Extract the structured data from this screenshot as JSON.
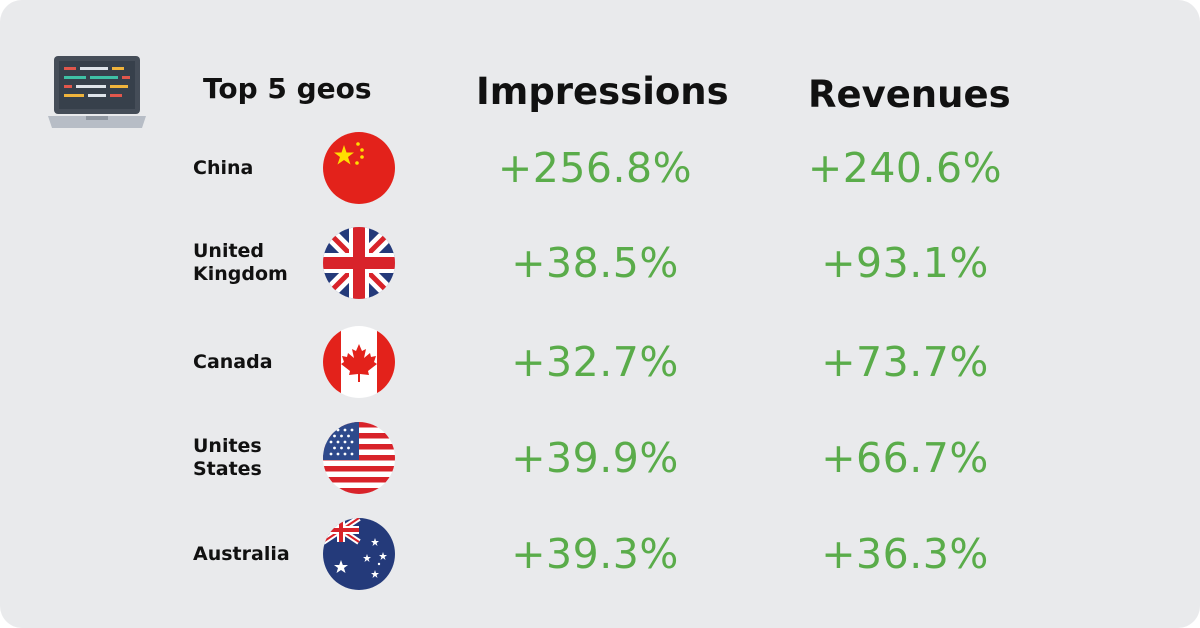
{
  "header": {
    "geo_label": "Top 5 geos",
    "impressions_label": "Impressions",
    "revenues_label": "Revenues"
  },
  "rows": [
    {
      "country": "China",
      "flag_icon": "china-flag-icon",
      "impressions": "+256.8%",
      "revenues": "+240.6%"
    },
    {
      "country": "United\nKingdom",
      "flag_icon": "uk-flag-icon",
      "impressions": "+38.5%",
      "revenues": "+93.1%"
    },
    {
      "country": "Canada",
      "flag_icon": "canada-flag-icon",
      "impressions": "+32.7%",
      "revenues": "+73.7%"
    },
    {
      "country": "Unites\nStates",
      "flag_icon": "usa-flag-icon",
      "impressions": "+39.9%",
      "revenues": "+66.7%"
    },
    {
      "country": "Australia",
      "flag_icon": "australia-flag-icon",
      "impressions": "+39.3%",
      "revenues": "+36.3%"
    }
  ],
  "colors": {
    "background": "#e9eaec",
    "value_green": "#5aac4a",
    "text_dark": "#111111"
  }
}
